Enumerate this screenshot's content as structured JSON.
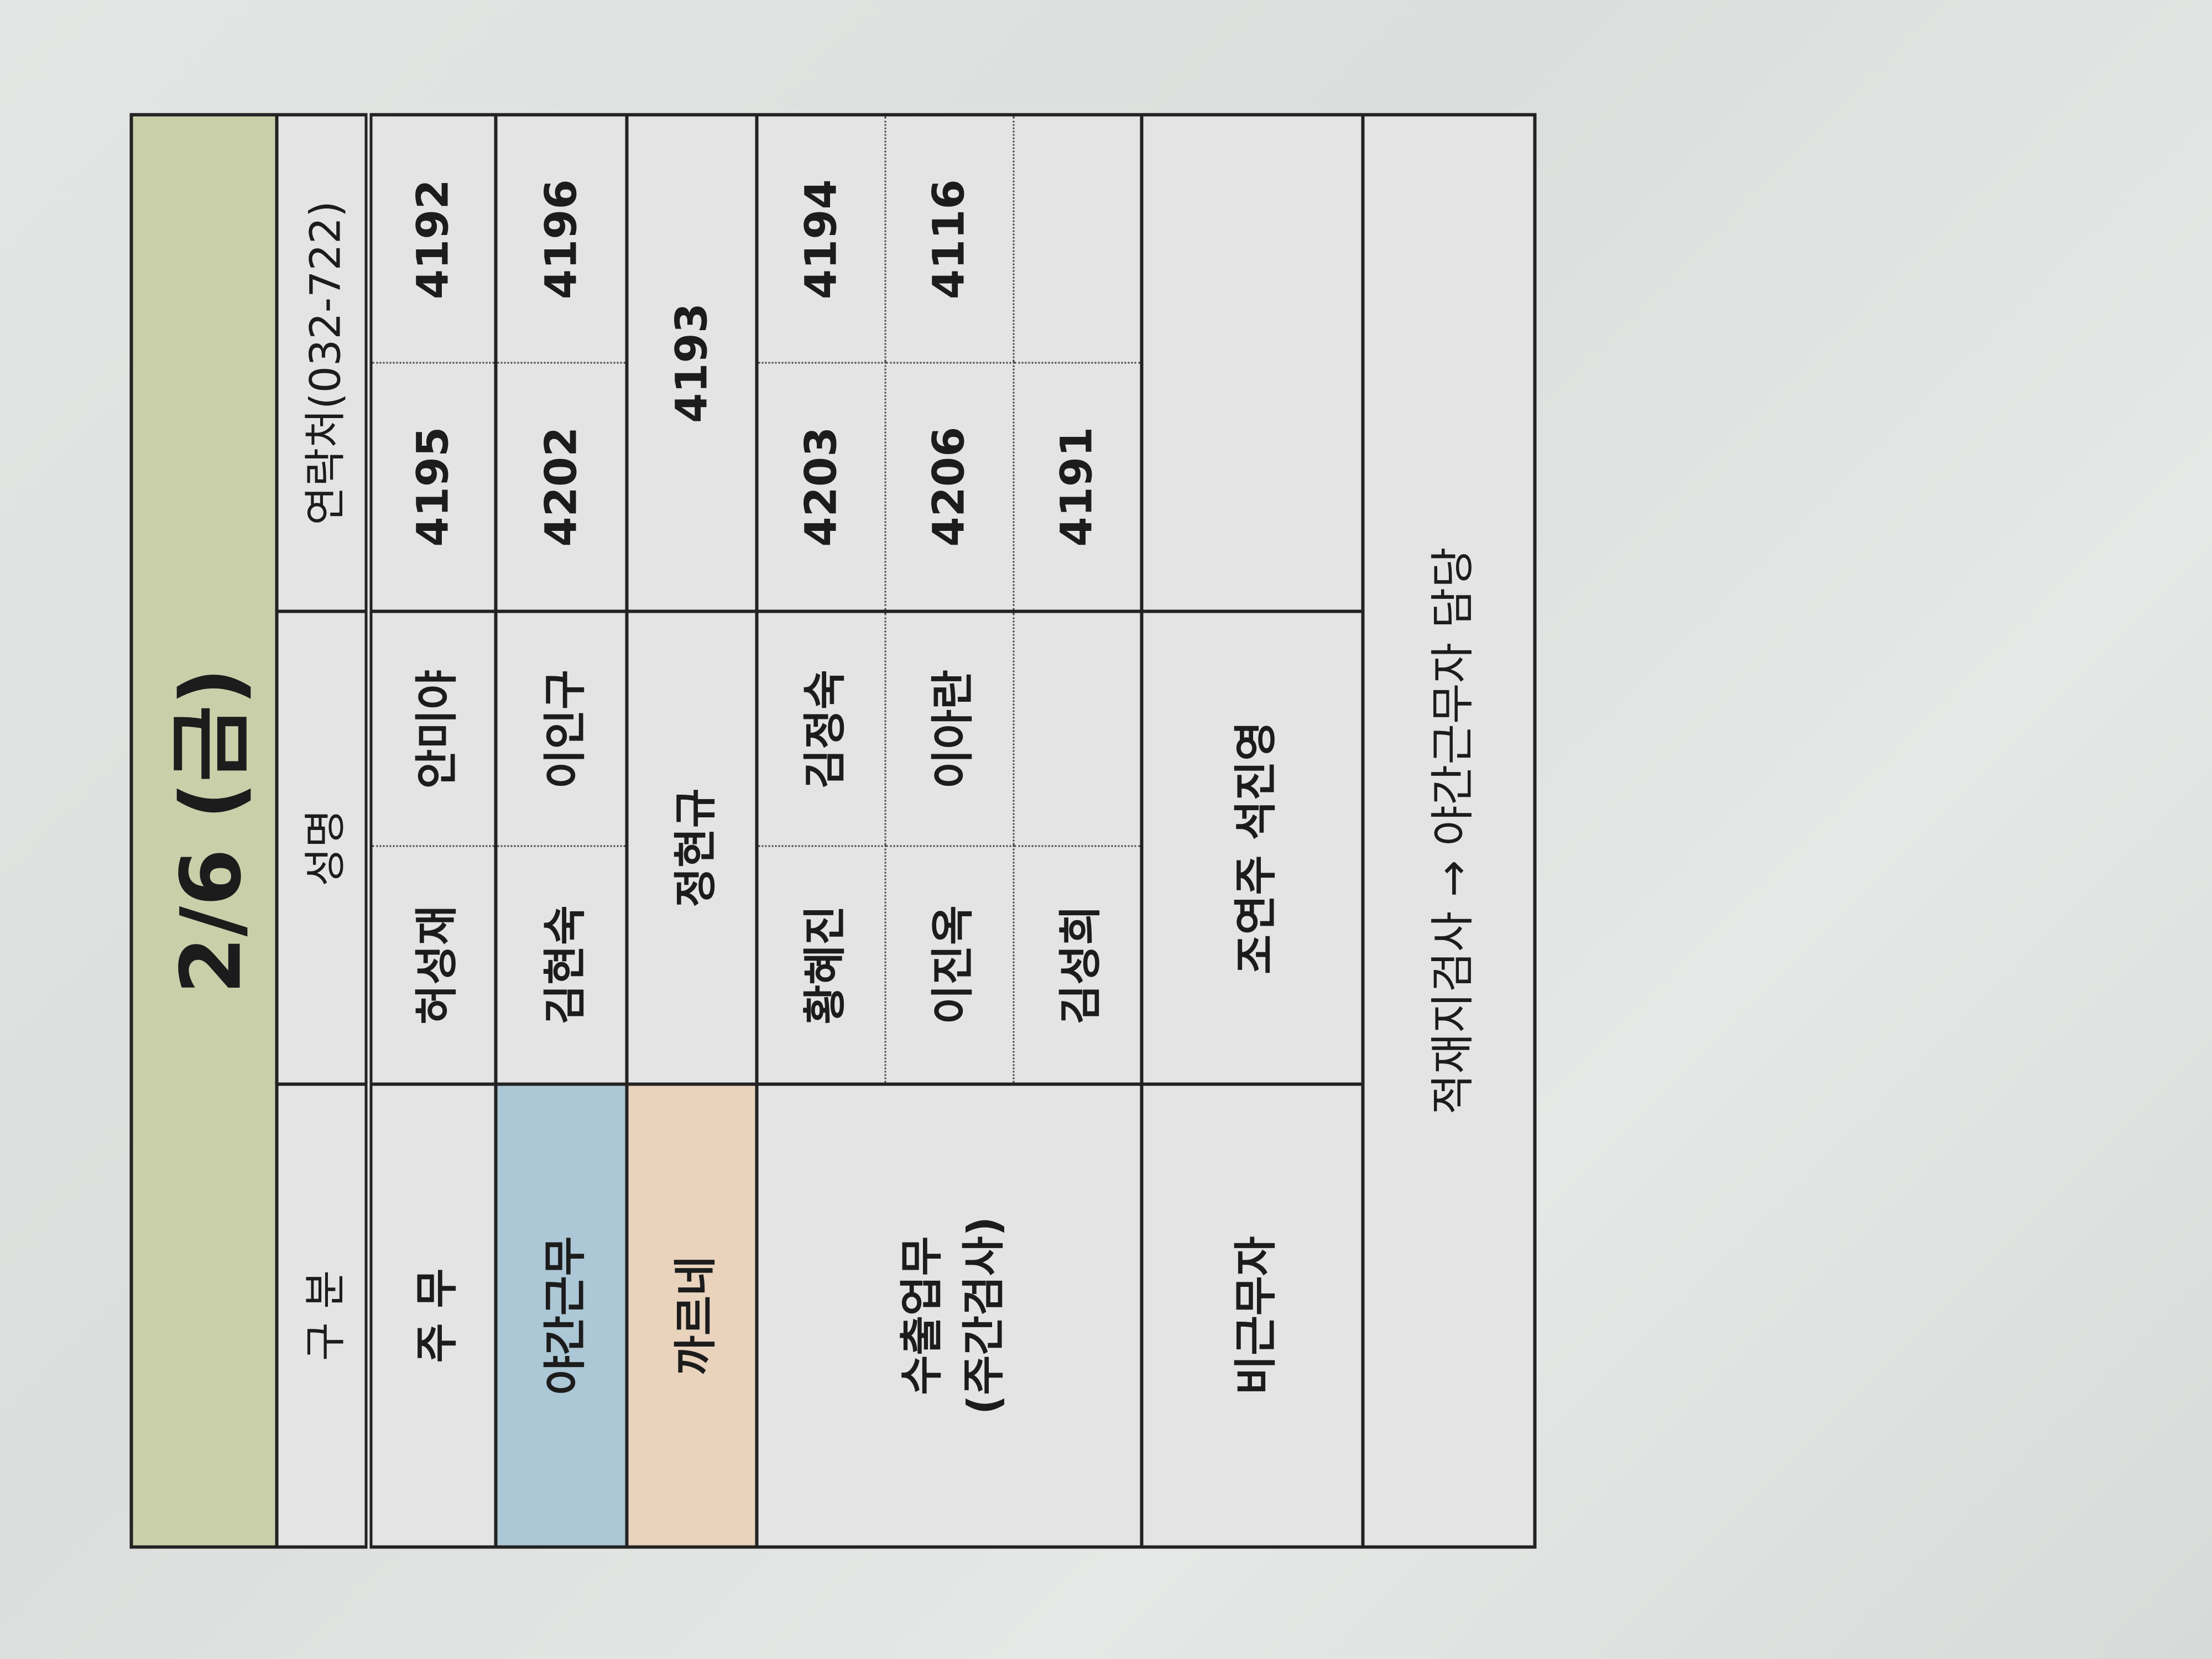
{
  "title": "2/6 (금)",
  "header": {
    "category": "구 분",
    "name": "성명",
    "contact": "연락처(032-722)"
  },
  "rows": {
    "jumu": {
      "label": "주 무",
      "names": [
        "허성재",
        "안미야"
      ],
      "phones": [
        "4195",
        "4192"
      ]
    },
    "night": {
      "label": "야간근무",
      "names": [
        "김현숙",
        "이인구"
      ],
      "phones": [
        "4202",
        "4196"
      ]
    },
    "carnet": {
      "label": "까르네",
      "name": "정현규",
      "phone": "4193"
    },
    "export": {
      "label": "수출업무",
      "sublabel": "(주간검사)",
      "entries": [
        {
          "names": [
            "황혜진",
            "김정숙"
          ],
          "phones": [
            "4203",
            "4194"
          ]
        },
        {
          "names": [
            "이진옥",
            "이아란"
          ],
          "phones": [
            "4206",
            "4116"
          ]
        },
        {
          "names": [
            "김성희",
            ""
          ],
          "phones": [
            "4191",
            ""
          ]
        }
      ]
    },
    "off": {
      "label": "비근무자",
      "names": "조연주 석진영"
    }
  },
  "footer": "적재지검사 → 야간근무자 담당",
  "colors": {
    "title_bg": "#c9cfa9",
    "night_bg": "#acc7d6",
    "carnet_bg": "#e9d3bd"
  }
}
